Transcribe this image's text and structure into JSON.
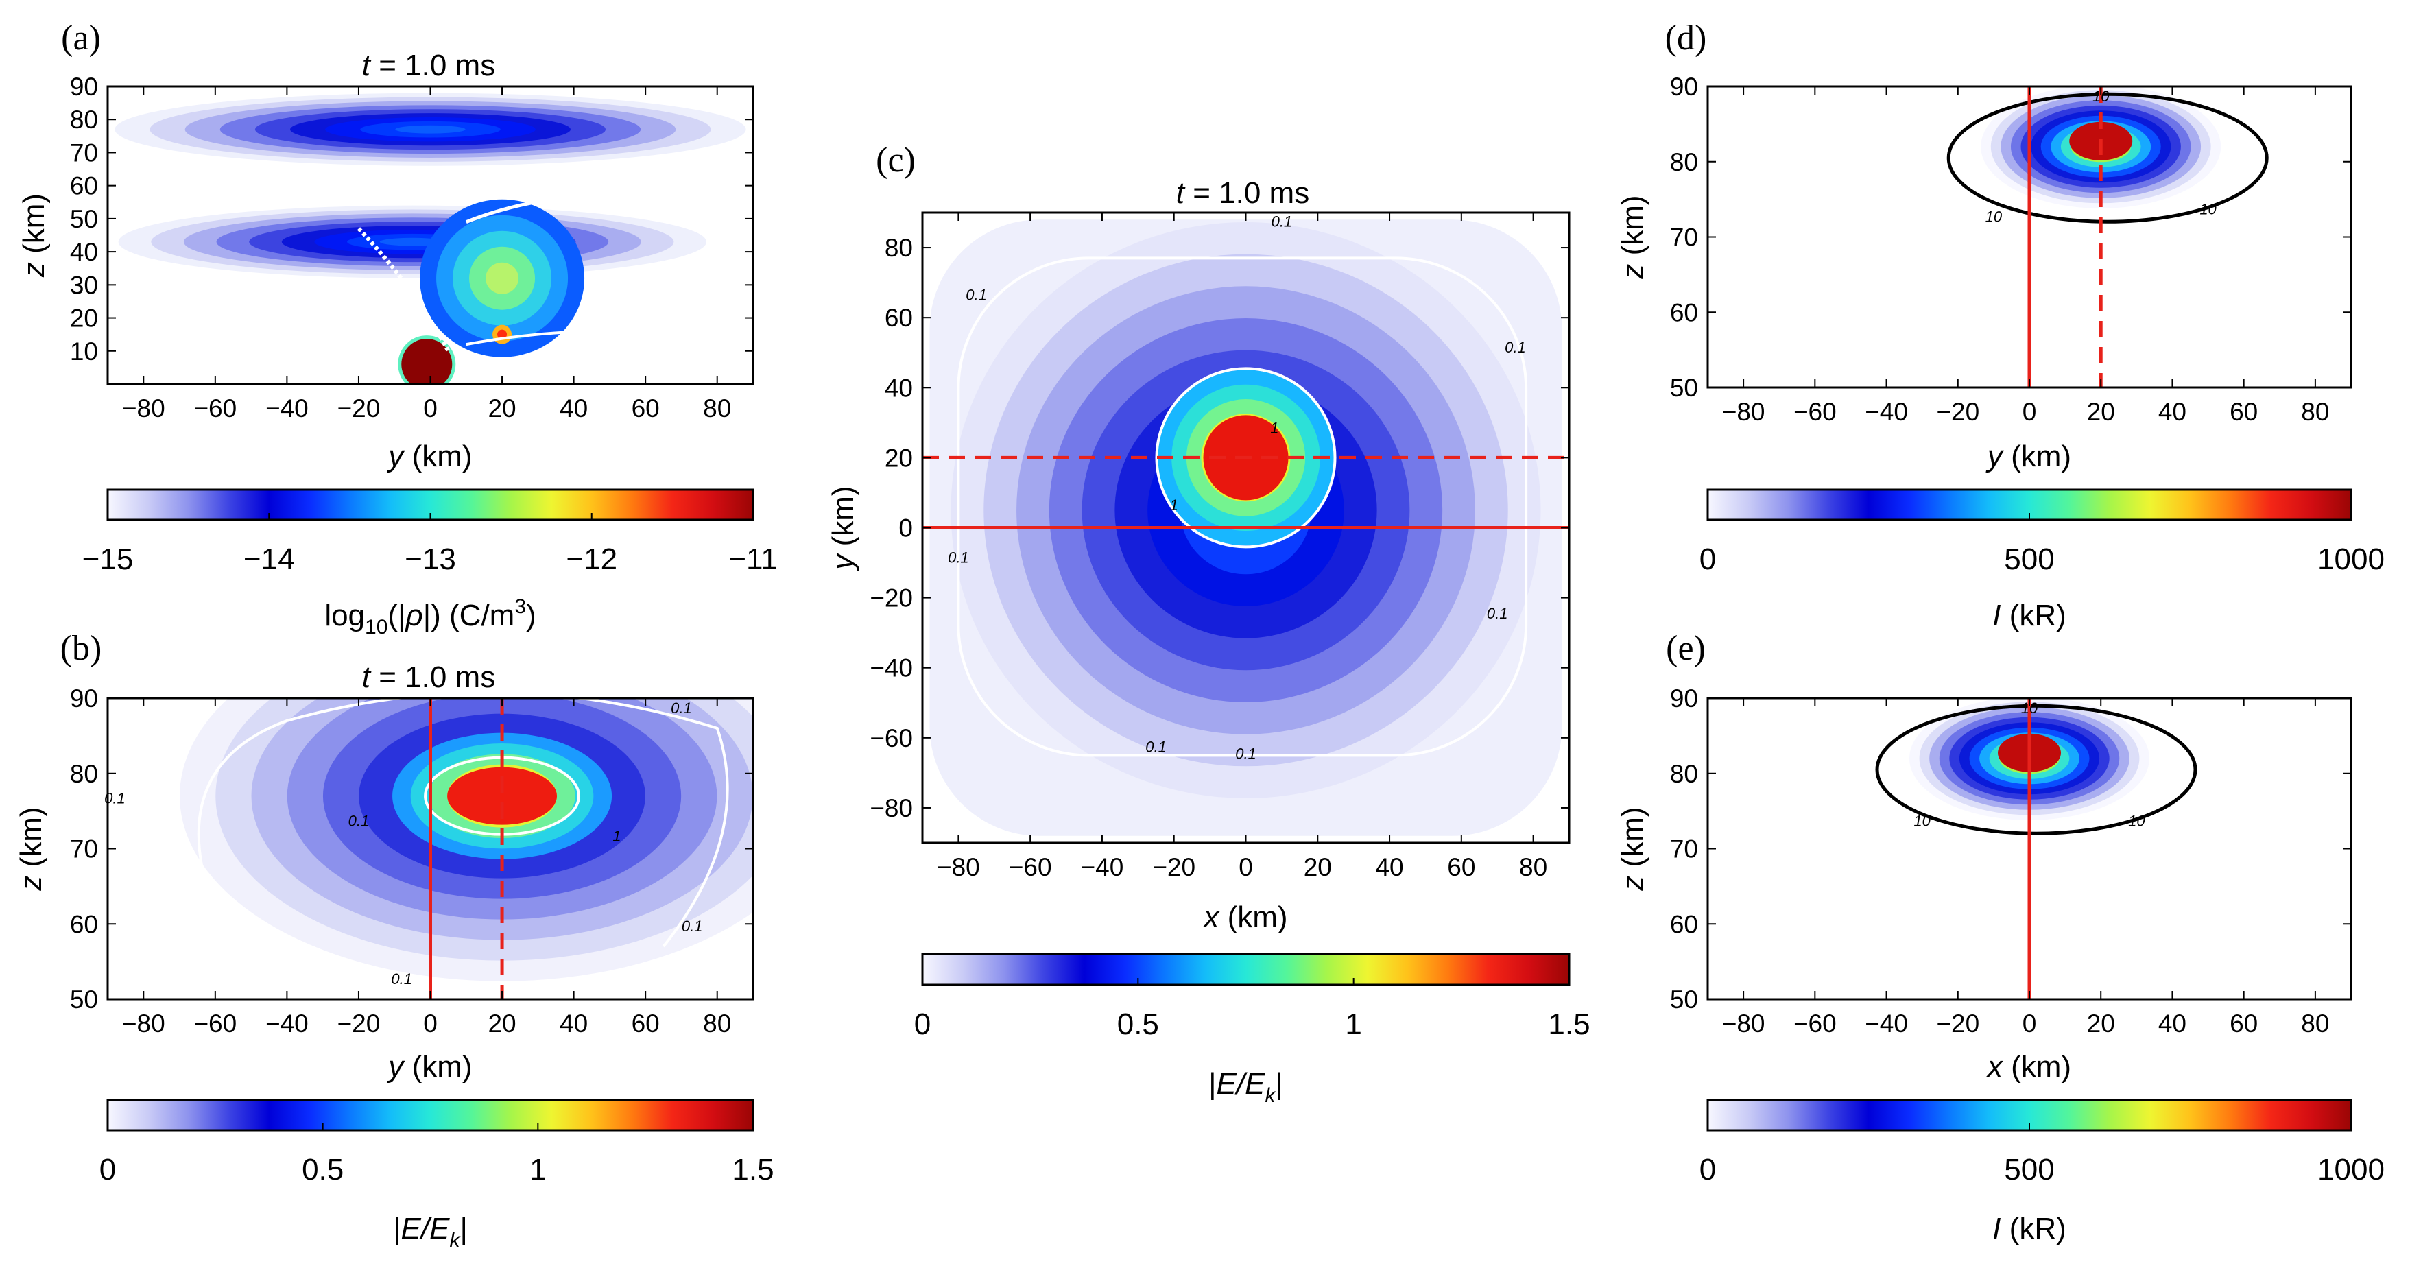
{
  "chart_data": [
    {
      "panel": "(a)",
      "type": "heatmap",
      "title_var": "t",
      "title_rest": " = 1.0 ms",
      "xlabel_var": "y",
      "xlabel_unit": " (km)",
      "ylabel_var": "z",
      "ylabel_unit": " (km)",
      "xlim": [
        -90,
        90
      ],
      "ylim": [
        0,
        90
      ],
      "xticks": [
        -80,
        -60,
        -40,
        -20,
        0,
        20,
        40,
        60,
        80
      ],
      "yticks": [
        10,
        20,
        30,
        40,
        50,
        60,
        70,
        80,
        90
      ],
      "colorbar": {
        "ticks": [
          "−15",
          "−14",
          "−13",
          "−12",
          "−11"
        ],
        "range": [
          -15,
          -11
        ],
        "label_pre": "log",
        "label_sub": "10",
        "label_mid": "(|ρ|) (C/m",
        "label_sup": "3",
        "label_post": ")"
      },
      "features": [
        {
          "kind": "band",
          "y_center": 0,
          "z_center": 77,
          "half_width": 88,
          "half_height": 11,
          "level": -14.1
        },
        {
          "kind": "band",
          "y_center": -5,
          "z_center": 43,
          "half_width": 82,
          "half_height": 11,
          "level": -14.0
        },
        {
          "kind": "plume",
          "y_center": 20,
          "z_center": 32,
          "level": -12.6
        },
        {
          "kind": "core",
          "y_center": -1,
          "z_center": 6,
          "radius": 9,
          "level": -11
        }
      ]
    },
    {
      "panel": "(b)",
      "type": "heatmap",
      "title_var": "t",
      "title_rest": " = 1.0 ms",
      "xlabel_var": "y",
      "xlabel_unit": " (km)",
      "ylabel_var": "z",
      "ylabel_unit": " (km)",
      "xlim": [
        -90,
        90
      ],
      "ylim": [
        50,
        90
      ],
      "xticks": [
        -80,
        -60,
        -40,
        -20,
        0,
        20,
        40,
        60,
        80
      ],
      "yticks": [
        50,
        60,
        70,
        80,
        90
      ],
      "peak": {
        "x": 20,
        "y": 77,
        "value": 1.5
      },
      "contours": [
        {
          "level": 0.1,
          "label": "0.1",
          "color": "#ffffff"
        },
        {
          "level": 1,
          "label": "1",
          "color": "#ffffff"
        }
      ],
      "ref_lines": [
        {
          "axis": "y",
          "value": 0,
          "style": "solid",
          "color": "#e8221b"
        },
        {
          "axis": "y",
          "value": 20,
          "style": "dashed",
          "color": "#e8221b"
        }
      ],
      "colorbar": {
        "ticks": [
          "0",
          "0.5",
          "1",
          "1.5"
        ],
        "range": [
          0,
          1.5
        ],
        "label_pre": "|",
        "label_var": "E/E",
        "label_sub": "k",
        "label_post": "|"
      }
    },
    {
      "panel": "(c)",
      "type": "heatmap",
      "title_var": "t",
      "title_rest": " = 1.0 ms",
      "xlabel_var": "x",
      "xlabel_unit": " (km)",
      "ylabel_var": "y",
      "ylabel_unit": " (km)",
      "xlim": [
        -90,
        90
      ],
      "ylim": [
        -90,
        90
      ],
      "xticks": [
        -80,
        -60,
        -40,
        -20,
        0,
        20,
        40,
        60,
        80
      ],
      "yticks": [
        -80,
        -60,
        -40,
        -20,
        0,
        20,
        40,
        60,
        80
      ],
      "peak": {
        "x": 0,
        "y": 20,
        "value": 1.5
      },
      "contours": [
        {
          "level": 0.1,
          "label": "0.1",
          "color": "#ffffff"
        },
        {
          "level": 1,
          "label": "1",
          "color": "#ffffff"
        }
      ],
      "ref_lines": [
        {
          "axis": "y",
          "value": 0,
          "style": "solid",
          "color": "#e8221b"
        },
        {
          "axis": "y",
          "value": 20,
          "style": "dashed",
          "color": "#e8221b"
        }
      ],
      "colorbar": {
        "ticks": [
          "0",
          "0.5",
          "1",
          "1.5"
        ],
        "range": [
          0,
          1.5
        ],
        "label_pre": "|",
        "label_var": "E/E",
        "label_sub": "k",
        "label_post": "|"
      }
    },
    {
      "panel": "(d)",
      "type": "heatmap",
      "title_var": "",
      "title_rest": "",
      "xlabel_var": "y",
      "xlabel_unit": " (km)",
      "ylabel_var": "z",
      "ylabel_unit": " (km)",
      "xlim": [
        -90,
        90
      ],
      "ylim": [
        50,
        90
      ],
      "xticks": [
        -80,
        -60,
        -40,
        -20,
        0,
        20,
        40,
        60,
        80
      ],
      "yticks": [
        50,
        60,
        70,
        80,
        90
      ],
      "peak": {
        "x": 20,
        "y": 82,
        "value": 1000
      },
      "contours": [
        {
          "level": 10,
          "label": "10",
          "color": "#000000"
        }
      ],
      "ref_lines": [
        {
          "axis": "y",
          "value": 0,
          "style": "solid",
          "color": "#e8221b"
        },
        {
          "axis": "y",
          "value": 20,
          "style": "dashed",
          "color": "#e8221b"
        }
      ],
      "colorbar": {
        "ticks": [
          "0",
          "500",
          "1000"
        ],
        "range": [
          0,
          1000
        ],
        "label_var": "I",
        "label_post": " (kR)"
      }
    },
    {
      "panel": "(e)",
      "type": "heatmap",
      "title_var": "",
      "title_rest": "",
      "xlabel_var": "x",
      "xlabel_unit": " (km)",
      "ylabel_var": "z",
      "ylabel_unit": " (km)",
      "xlim": [
        -90,
        90
      ],
      "ylim": [
        50,
        90
      ],
      "xticks": [
        -80,
        -60,
        -40,
        -20,
        0,
        20,
        40,
        60,
        80
      ],
      "yticks": [
        50,
        60,
        70,
        80,
        90
      ],
      "peak": {
        "x": 0,
        "y": 82,
        "value": 1000
      },
      "contours": [
        {
          "level": 10,
          "label": "10",
          "color": "#000000"
        }
      ],
      "ref_lines": [
        {
          "axis": "x",
          "value": 0,
          "style": "solid",
          "color": "#e8221b"
        }
      ],
      "colorbar": {
        "ticks": [
          "0",
          "500",
          "1000"
        ],
        "range": [
          0,
          1000
        ],
        "label_var": "I",
        "label_post": " (kR)"
      }
    }
  ]
}
